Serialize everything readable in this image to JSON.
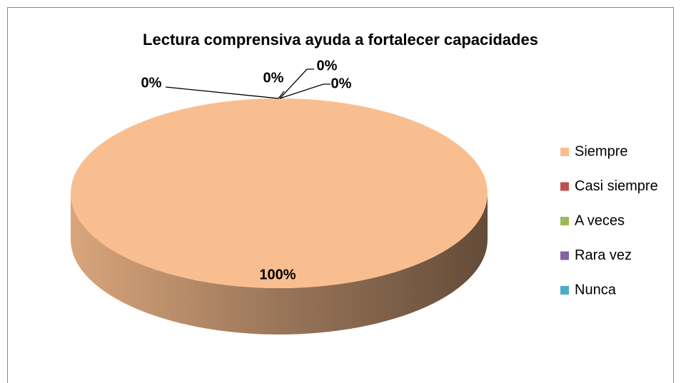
{
  "chart_data": {
    "type": "pie",
    "title": "Lectura comprensiva ayuda a fortalecer capacidades",
    "categories": [
      "Siempre",
      "Casi siempre",
      "A veces",
      "Rara vez",
      "Nunca"
    ],
    "values": [
      100,
      0,
      0,
      0,
      0
    ],
    "value_labels": [
      "100%",
      "0%",
      "0%",
      "0%",
      "0%"
    ],
    "colors": [
      "#f9be8f",
      "#c0504d",
      "#9bbb59",
      "#8064a2",
      "#4bacc6"
    ],
    "legend": "right"
  }
}
